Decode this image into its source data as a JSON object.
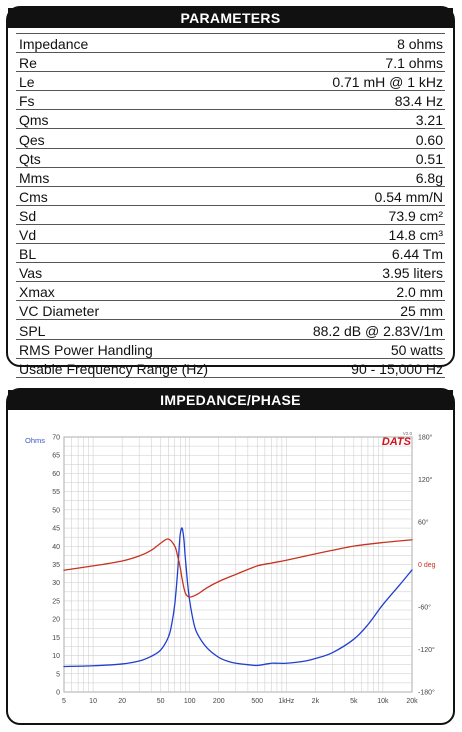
{
  "parameters": {
    "title": "PARAMETERS",
    "rows": [
      {
        "label": "Impedance",
        "value": "8 ohms"
      },
      {
        "label": "Re",
        "value": "7.1 ohms"
      },
      {
        "label": "Le",
        "value": "0.71 mH @ 1 kHz"
      },
      {
        "label": "Fs",
        "value": "83.4 Hz"
      },
      {
        "label": "Qms",
        "value": "3.21"
      },
      {
        "label": "Qes",
        "value": "0.60"
      },
      {
        "label": "Qts",
        "value": "0.51"
      },
      {
        "label": "Mms",
        "value": "6.8g"
      },
      {
        "label": "Cms",
        "value": "0.54 mm/N"
      },
      {
        "label": "Sd",
        "value": "73.9 cm²"
      },
      {
        "label": "Vd",
        "value": "14.8 cm³"
      },
      {
        "label": "BL",
        "value": "6.44 Tm"
      },
      {
        "label": "Vas",
        "value": "3.95 liters"
      },
      {
        "label": "Xmax",
        "value": "2.0 mm"
      },
      {
        "label": "VC Diameter",
        "value": "25 mm"
      },
      {
        "label": "SPL",
        "value": "88.2 dB @ 2.83V/1m"
      },
      {
        "label": "RMS Power Handling",
        "value": "50 watts"
      },
      {
        "label": "Usable Frequency Range (Hz)",
        "value": "90 - 15,000 Hz"
      }
    ]
  },
  "impedance_panel": {
    "title": "IMPEDANCE/PHASE",
    "left_unit": "Ohms",
    "brand": "DATS",
    "brand_version": "V2.0",
    "colors": {
      "impedance": "#1f3fcf",
      "phase": "#c8321e",
      "grid": "#c8c8c8",
      "brand": "#d0141a"
    }
  },
  "chart_data": {
    "type": "line",
    "title": "IMPEDANCE/PHASE",
    "x_scale": "log",
    "xlim": [
      5,
      20000
    ],
    "x_ticks": [
      {
        "v": 5,
        "label": "5"
      },
      {
        "v": 10,
        "label": "10"
      },
      {
        "v": 20,
        "label": "20"
      },
      {
        "v": 50,
        "label": "50"
      },
      {
        "v": 100,
        "label": "100"
      },
      {
        "v": 200,
        "label": "200"
      },
      {
        "v": 500,
        "label": "500"
      },
      {
        "v": 1000,
        "label": "1kHz"
      },
      {
        "v": 2000,
        "label": "2k"
      },
      {
        "v": 5000,
        "label": "5k"
      },
      {
        "v": 10000,
        "label": "10k"
      },
      {
        "v": 20000,
        "label": "20k"
      }
    ],
    "ylim": [
      0,
      70
    ],
    "y_ticks": [
      0,
      5,
      10,
      15,
      20,
      25,
      30,
      35,
      40,
      45,
      50,
      55,
      60,
      65,
      70
    ],
    "y2lim": [
      -180,
      180
    ],
    "y2_ticks": [
      {
        "v": 180,
        "label": "180°"
      },
      {
        "v": 120,
        "label": "120°"
      },
      {
        "v": 60,
        "label": "60°"
      },
      {
        "v": 0,
        "label": "0 deg"
      },
      {
        "v": -60,
        "label": "-60°"
      },
      {
        "v": -120,
        "label": "-120°"
      },
      {
        "v": -180,
        "label": "-180°"
      }
    ],
    "grid": true,
    "series": [
      {
        "name": "Impedance",
        "axis": "left",
        "x": [
          5,
          10,
          20,
          30,
          40,
          50,
          60,
          65,
          70,
          75,
          78,
          80,
          83.4,
          87,
          90,
          95,
          100,
          110,
          120,
          150,
          200,
          250,
          300,
          400,
          500,
          600,
          700,
          800,
          1000,
          1500,
          2000,
          3000,
          5000,
          7000,
          10000,
          15000,
          20000
        ],
        "y": [
          7.0,
          7.2,
          7.7,
          8.5,
          9.8,
          11.5,
          15,
          18.5,
          24,
          33,
          40,
          43.5,
          45,
          42,
          37,
          30,
          25,
          19,
          16,
          12.2,
          9.5,
          8.4,
          7.9,
          7.5,
          7.3,
          7.6,
          7.9,
          7.9,
          7.9,
          8.4,
          9.2,
          10.8,
          14.5,
          18.5,
          24,
          29.5,
          33.5
        ]
      },
      {
        "name": "Phase",
        "axis": "right",
        "x": [
          5,
          10,
          20,
          30,
          40,
          50,
          60,
          70,
          75,
          80,
          83.4,
          90,
          100,
          120,
          150,
          200,
          300,
          500,
          700,
          1000,
          2000,
          3000,
          5000,
          10000,
          20000
        ],
        "y": [
          -8,
          -2,
          5,
          12,
          20,
          30,
          36,
          26,
          12,
          -5,
          -20,
          -40,
          -46,
          -42,
          -33,
          -24,
          -14,
          -2,
          2,
          6,
          15,
          20,
          26,
          31,
          35
        ]
      }
    ]
  }
}
